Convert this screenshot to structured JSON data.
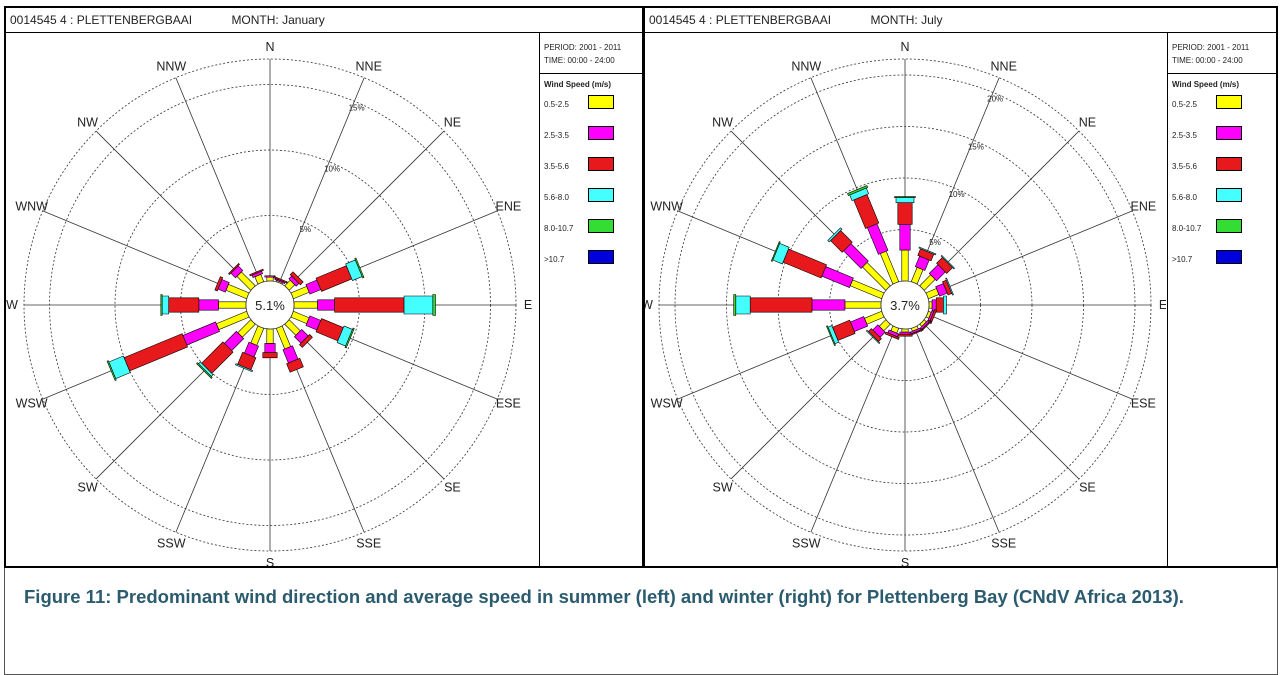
{
  "caption": "Figure 11: Predominant wind direction and average speed in summer (left) and winter (right) for Plettenberg Bay (CNdV Africa 2013).",
  "colors": {
    "bins": [
      "#ffff00",
      "#ff00ff",
      "#e8191c",
      "#44ffff",
      "#33dd33",
      "#0000dd"
    ],
    "caption": "#2b5b6e"
  },
  "directions": [
    "N",
    "NNE",
    "NE",
    "ENE",
    "E",
    "ESE",
    "SE",
    "SSE",
    "S",
    "SSW",
    "SW",
    "WSW",
    "W",
    "WNW",
    "NW",
    "NNW"
  ],
  "legend": {
    "title": "Wind Speed (m/s)",
    "bins": [
      "0.5-2.5",
      "2.5-3.5",
      "3.5-5.6",
      "5.6-8.0",
      "8.0-10.7",
      ">10.7"
    ]
  },
  "panels": [
    {
      "station": "0014545 4 : PLETTENBERGBAAI",
      "month": "MONTH: January",
      "period": "PERIOD: 2001 - 2011",
      "time": "TIME: 00:00 - 24:00",
      "calm": "5.1%",
      "ring_labels": [
        "5%",
        "10%",
        "15%"
      ]
    },
    {
      "station": "0014545 4 : PLETTENBERGBAAI",
      "month": "MONTH: July",
      "period": "PERIOD: 2001 - 2011",
      "time": "TIME: 00:00 - 24:00",
      "calm": "3.7%",
      "ring_labels": [
        "5%",
        "10%",
        "15%",
        "20%"
      ]
    }
  ],
  "chart_data": [
    {
      "type": "wind-rose",
      "title": "0014545 4 : PLETTENBERGBAAI  MONTH: January",
      "directions": [
        "N",
        "NNE",
        "NE",
        "ENE",
        "E",
        "ESE",
        "SE",
        "SSE",
        "S",
        "SSW",
        "SW",
        "WSW",
        "W",
        "WNW",
        "NW",
        "NNW"
      ],
      "radial_unit": "%",
      "rings": [
        5,
        10,
        15
      ],
      "calm_percent": 5.1,
      "series": [
        {
          "name": "0.5-2.5",
          "values": [
            0.3,
            0.1,
            0.6,
            1.3,
            1.8,
            1.3,
            1.2,
            1.7,
            1.1,
            1.4,
            1.4,
            2.5,
            2.1,
            1.7,
            1.5,
            0.6
          ]
        },
        {
          "name": "2.5-3.5",
          "values": [
            0.1,
            0.1,
            0.3,
            0.9,
            1.3,
            0.9,
            0.7,
            1.1,
            0.7,
            0.9,
            1.3,
            2.7,
            1.5,
            0.6,
            0.5,
            0.2
          ]
        },
        {
          "name": "3.5-5.6",
          "values": [
            0.0,
            0.1,
            0.3,
            2.5,
            5.3,
            1.8,
            0.3,
            0.7,
            0.4,
            1.0,
            2.3,
            4.8,
            2.3,
            0.2,
            0.1,
            0.1
          ]
        },
        {
          "name": "5.6-8.0",
          "values": [
            0.0,
            0.0,
            0.0,
            0.8,
            2.2,
            0.7,
            0.0,
            0.0,
            0.0,
            0.1,
            0.2,
            1.2,
            0.5,
            0.0,
            0.0,
            0.0
          ]
        },
        {
          "name": "8.0-10.7",
          "values": [
            0.0,
            0.0,
            0.0,
            0.1,
            0.2,
            0.1,
            0.0,
            0.0,
            0.0,
            0.0,
            0.1,
            0.1,
            0.1,
            0.0,
            0.0,
            0.0
          ]
        },
        {
          "name": ">10.7",
          "values": [
            0,
            0,
            0,
            0,
            0,
            0,
            0,
            0,
            0,
            0,
            0,
            0,
            0,
            0,
            0,
            0
          ]
        }
      ]
    },
    {
      "type": "wind-rose",
      "title": "0014545 4 : PLETTENBERGBAAI  MONTH: July",
      "directions": [
        "N",
        "NNE",
        "NE",
        "ENE",
        "E",
        "ESE",
        "SE",
        "SSE",
        "S",
        "SSW",
        "SW",
        "WSW",
        "W",
        "WNW",
        "NW",
        "NNW"
      ],
      "radial_unit": "%",
      "rings": [
        5,
        10,
        15,
        20
      ],
      "calm_percent": 3.7,
      "series": [
        {
          "name": "0.5-2.5",
          "values": [
            3.0,
            1.5,
            1.5,
            1.1,
            0.3,
            0.3,
            0.3,
            0.3,
            0.3,
            0.5,
            0.9,
            1.8,
            3.5,
            3.3,
            3.2,
            3.2
          ]
        },
        {
          "name": "2.5-3.5",
          "values": [
            2.5,
            1.1,
            1.2,
            0.8,
            0.4,
            0.2,
            0.2,
            0.2,
            0.2,
            0.3,
            0.7,
            1.4,
            3.2,
            2.9,
            2.4,
            2.8
          ]
        },
        {
          "name": "3.5-5.6",
          "values": [
            2.1,
            0.7,
            0.8,
            0.4,
            0.7,
            0.2,
            0.1,
            0.1,
            0.2,
            0.2,
            0.4,
            1.8,
            6.0,
            4.0,
            1.6,
            3.0
          ]
        },
        {
          "name": "5.6-8.0",
          "values": [
            0.5,
            0.1,
            0.1,
            0.1,
            0.3,
            0.0,
            0.0,
            0.0,
            0.0,
            0.0,
            0.1,
            0.4,
            1.4,
            1.0,
            0.2,
            0.6
          ]
        },
        {
          "name": "8.0-10.7",
          "values": [
            0.1,
            0.0,
            0.0,
            0.0,
            0.0,
            0.0,
            0.0,
            0.0,
            0.0,
            0.0,
            0.0,
            0.1,
            0.2,
            0.1,
            0.0,
            0.2
          ]
        },
        {
          "name": ">10.7",
          "values": [
            0,
            0,
            0,
            0,
            0,
            0,
            0,
            0,
            0,
            0,
            0,
            0,
            0,
            0,
            0,
            0
          ]
        }
      ]
    }
  ]
}
